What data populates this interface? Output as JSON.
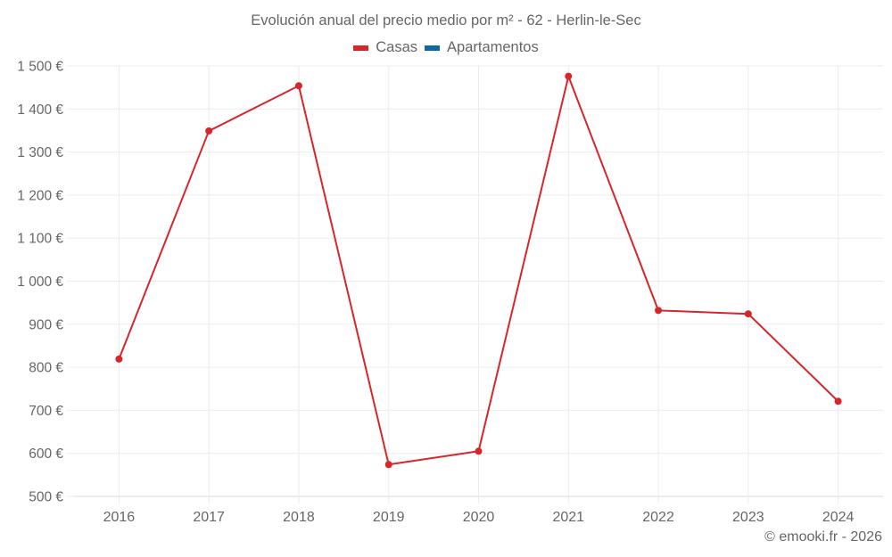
{
  "header": {
    "title": "Evolución anual del precio medio por m² - 62 - Herlin-le-Sec"
  },
  "legend": [
    {
      "label": "Casas",
      "color": "#d7262a"
    },
    {
      "label": "Apartamentos",
      "color": "#0a6aa1"
    }
  ],
  "credit": "© emooki.fr - 2026",
  "y_ticks": [
    "1 500 €",
    "1 400 €",
    "1 300 €",
    "1 200 €",
    "1 100 €",
    "1 000 €",
    "900 €",
    "800 €",
    "700 €",
    "600 €",
    "500 €"
  ],
  "x_ticks": [
    "2016",
    "2017",
    "2018",
    "2019",
    "2020",
    "2021",
    "2022",
    "2023",
    "2024"
  ],
  "chart_data": {
    "type": "line",
    "title": "Evolución anual del precio medio por m² - 62 - Herlin-le-Sec",
    "xlabel": "",
    "ylabel": "",
    "categories": [
      "2016",
      "2017",
      "2018",
      "2019",
      "2020",
      "2021",
      "2022",
      "2023",
      "2024"
    ],
    "series": [
      {
        "name": "Casas",
        "color": "#d7262a",
        "values": [
          819,
          1349,
          1454,
          574,
          605,
          1476,
          932,
          924,
          721
        ]
      },
      {
        "name": "Apartamentos",
        "color": "#0a6aa1",
        "values": []
      }
    ],
    "ylim": [
      500,
      1500
    ],
    "y_tick_step": 100,
    "grid": true,
    "legend_position": "top"
  }
}
